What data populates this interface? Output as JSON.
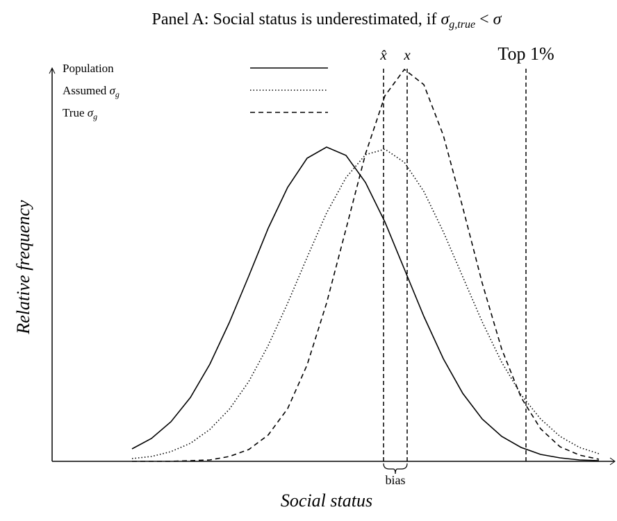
{
  "chart_data": {
    "type": "line",
    "title_parts": [
      {
        "text": "Panel A: Social status is underestimated, if "
      },
      {
        "text": "σ",
        "italic": true
      },
      {
        "text": "g,true",
        "sub": true
      },
      {
        "text": " < "
      },
      {
        "text": "σ",
        "italic": true
      }
    ],
    "x_label": "Social status",
    "y_label": "Relative frequency",
    "x": [
      115,
      143,
      171,
      199,
      227,
      255,
      283,
      311,
      339,
      367,
      395,
      423,
      451,
      479,
      507,
      535,
      563,
      591,
      619,
      647,
      675,
      703,
      731,
      759,
      787
    ],
    "xlim": [
      0,
      810
    ],
    "ylim": [
      0,
      565
    ],
    "legend": "upper left",
    "series": [
      {
        "name": "Population",
        "color": "#000000",
        "dash": "solid",
        "values": [
          18,
          33,
          57,
          92,
          140,
          200,
          267,
          336,
          395,
          437,
          453,
          441,
          402,
          345,
          277,
          209,
          148,
          98,
          61,
          36,
          20,
          10,
          5,
          2,
          1
        ]
      },
      {
        "name": "Assumed σ",
        "name_sub": "g",
        "color": "#000000",
        "dash": "dotted",
        "values": [
          4,
          7,
          14,
          26,
          46,
          75,
          115,
          167,
          228,
          294,
          358,
          409,
          442,
          450,
          431,
          389,
          331,
          266,
          201,
          143,
          96,
          61,
          36,
          20,
          11
        ]
      },
      {
        "name": "True σ",
        "name_sub": "g",
        "color": "#000000",
        "dash": "dashed",
        "values": [
          0,
          0,
          0,
          1,
          2,
          7,
          17,
          38,
          76,
          139,
          228,
          335,
          443,
          527,
          565,
          543,
          470,
          366,
          257,
          162,
          92,
          47,
          21,
          9,
          3
        ]
      }
    ],
    "vlines": [
      {
        "x": 477,
        "label": "x̂"
      },
      {
        "x": 511,
        "label": "x"
      },
      {
        "x": 682,
        "label": "Top 1%"
      }
    ],
    "bias_label": "bias"
  }
}
